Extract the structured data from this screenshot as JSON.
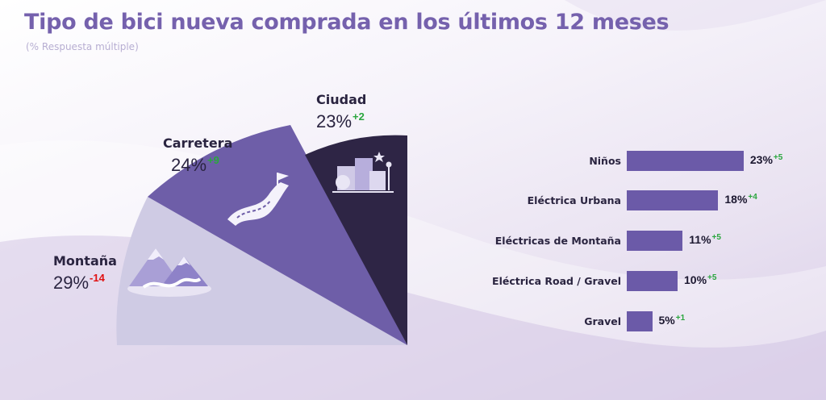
{
  "header": {
    "title": "Tipo de bici nueva comprada en los últimos 12 meses",
    "subtitle": "(% Respuesta múltiple)"
  },
  "colors": {
    "title": "#7561ad",
    "montana": "#cfcbe4",
    "carretera": "#6e5ea8",
    "ciudad": "#2e2545",
    "bar": "#6b5aa8",
    "positive": "#2aa63e",
    "negative": "#e01010"
  },
  "chart_data": [
    {
      "type": "pie",
      "series": [
        {
          "name": "Montaña",
          "value": 29,
          "value_label": "29%",
          "change_label": "-14",
          "icon": "mountain-icon"
        },
        {
          "name": "Carretera",
          "value": 24,
          "value_label": "24%",
          "change_label": "+9",
          "icon": "road-flag-icon"
        },
        {
          "name": "Ciudad",
          "value": 23,
          "value_label": "23%",
          "change_label": "+2",
          "icon": "city-icon"
        }
      ]
    },
    {
      "type": "bar",
      "orientation": "horizontal",
      "categories": [
        "Niños",
        "Eléctrica Urbana",
        "Eléctricas de Montaña",
        "Eléctrica Road / Gravel",
        "Gravel"
      ],
      "values": [
        23,
        18,
        11,
        10,
        5
      ],
      "value_labels": [
        "23%",
        "18%",
        "11%",
        "10%",
        "5%"
      ],
      "change_labels": [
        "+5",
        "+4",
        "+5",
        "+5",
        "+1"
      ]
    }
  ]
}
